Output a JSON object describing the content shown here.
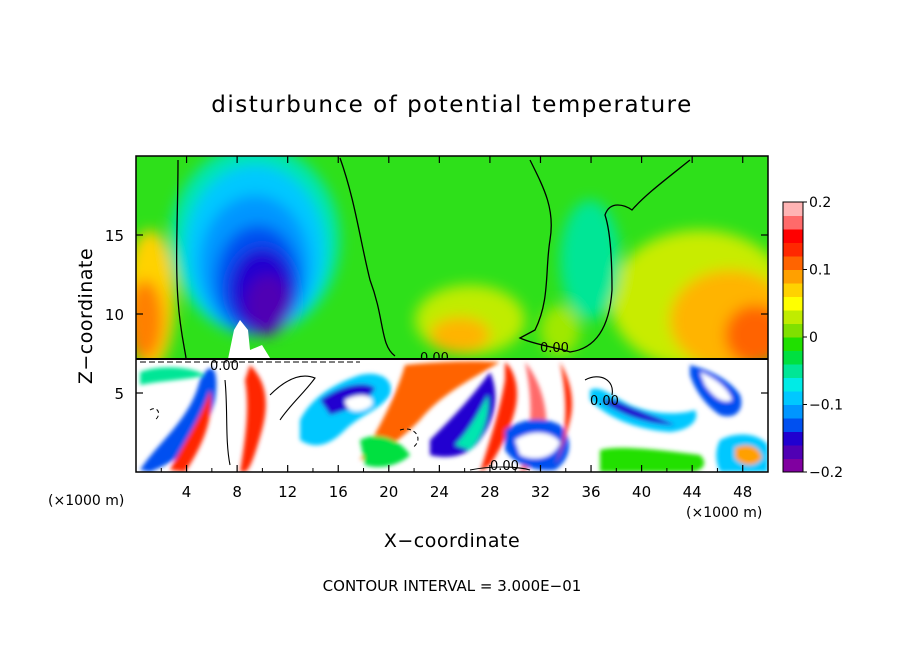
{
  "chart_data": {
    "type": "heatmap",
    "title": "disturbunce of potential temperature",
    "xlabel": "X−coordinate",
    "ylabel": "Z−coordinate",
    "x_unit_left": "(×1000 m)",
    "x_unit_right": "(×1000 m)",
    "footer": "CONTOUR INTERVAL = 3.000E−01",
    "xlim": [
      0,
      50
    ],
    "ylim": [
      0,
      20
    ],
    "x_ticks": [
      "4",
      "8",
      "12",
      "16",
      "20",
      "24",
      "28",
      "32",
      "36",
      "40",
      "44",
      "48"
    ],
    "x_tick_values": [
      4,
      8,
      12,
      16,
      20,
      24,
      28,
      32,
      36,
      40,
      44,
      48
    ],
    "y_ticks": [
      "5",
      "10",
      "15"
    ],
    "y_tick_values": [
      5,
      10,
      15
    ],
    "colorbar": {
      "ticks": [
        "0.2",
        "0.1",
        "0",
        "−0.1",
        "−0.2"
      ],
      "tick_values": [
        0.2,
        0.1,
        0,
        -0.1,
        -0.2
      ],
      "range": [
        -0.2,
        0.2
      ],
      "colors": [
        "#8000a0",
        "#5000b4",
        "#2000d0",
        "#0050f0",
        "#0096ff",
        "#00c8ff",
        "#00ebe6",
        "#00e696",
        "#00e040",
        "#20e000",
        "#80e000",
        "#c0ec00",
        "#ffff00",
        "#ffd200",
        "#ffa000",
        "#ff6400",
        "#ff2800",
        "#ff0000",
        "#ff6a6a",
        "#ffb4b4"
      ]
    },
    "contour_labels": [
      "0.00",
      "0.00",
      "0.00",
      "0.00",
      "0.00"
    ]
  }
}
